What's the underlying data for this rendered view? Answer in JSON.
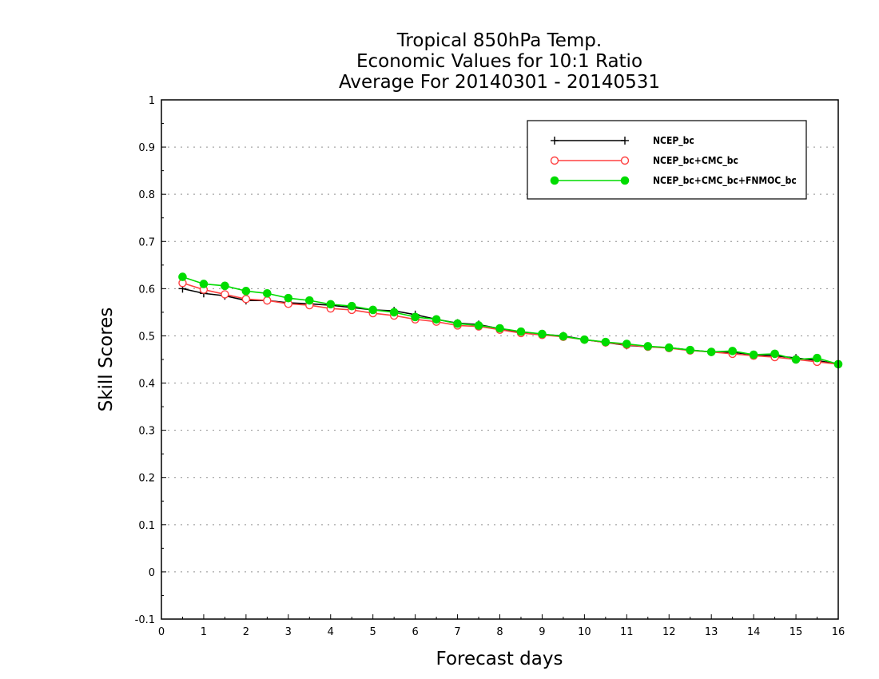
{
  "chart_data": {
    "type": "line",
    "title_lines": [
      "Tropical 850hPa Temp.",
      "Economic Values for 10:1 Ratio",
      "Average For 20140301 - 20140531"
    ],
    "xlabel": "Forecast days",
    "ylabel": "Skill Scores",
    "xlim": [
      0,
      16
    ],
    "ylim": [
      -0.1,
      1
    ],
    "x_ticks": [
      0,
      1,
      2,
      3,
      4,
      5,
      6,
      7,
      8,
      9,
      10,
      11,
      12,
      13,
      14,
      15,
      16
    ],
    "x_tick_labels": [
      "0",
      "1",
      "2",
      "3",
      "4",
      "5",
      "6",
      "7",
      "8",
      "9",
      "10",
      "11",
      "12",
      "13",
      "14",
      "15",
      "16"
    ],
    "y_ticks": [
      -0.1,
      0,
      0.1,
      0.2,
      0.3,
      0.4,
      0.5,
      0.6,
      0.7,
      0.8,
      0.9,
      1
    ],
    "y_tick_labels": [
      "-0.1",
      "0",
      "0.1",
      "0.2",
      "0.3",
      "0.4",
      "0.5",
      "0.6",
      "0.7",
      "0.8",
      "0.9",
      "1"
    ],
    "grid": "horizontal-dotted",
    "legend_position": "top-right",
    "x": [
      0.5,
      1,
      1.5,
      2,
      2.5,
      3,
      3.5,
      4,
      4.5,
      5,
      5.5,
      6,
      6.5,
      7,
      7.5,
      8,
      8.5,
      9,
      9.5,
      10,
      10.5,
      11,
      11.5,
      12,
      12.5,
      13,
      13.5,
      14,
      14.5,
      15,
      15.5,
      16
    ],
    "series": [
      {
        "name": "NCEP_bc",
        "color": "#000000",
        "marker": "plus",
        "values": [
          0.6,
          0.59,
          0.585,
          0.575,
          0.575,
          0.57,
          0.568,
          0.565,
          0.56,
          0.555,
          0.553,
          0.545,
          0.535,
          0.527,
          0.524,
          0.515,
          0.508,
          0.503,
          0.5,
          0.492,
          0.486,
          0.48,
          0.477,
          0.475,
          0.47,
          0.466,
          0.465,
          0.46,
          0.458,
          0.453,
          0.448,
          0.44
        ]
      },
      {
        "name": "NCEP_bc+CMC_bc",
        "color": "#ff4040",
        "marker": "open-circle",
        "values": [
          0.612,
          0.598,
          0.588,
          0.578,
          0.575,
          0.568,
          0.565,
          0.558,
          0.555,
          0.548,
          0.543,
          0.535,
          0.53,
          0.522,
          0.52,
          0.513,
          0.506,
          0.502,
          0.498,
          0.492,
          0.486,
          0.481,
          0.477,
          0.474,
          0.469,
          0.466,
          0.462,
          0.458,
          0.455,
          0.45,
          0.445,
          0.44
        ]
      },
      {
        "name": "NCEP_bc+CMC_bc+FNMOC_bc",
        "color": "#00dc00",
        "marker": "filled-circle",
        "values": [
          0.625,
          0.61,
          0.606,
          0.595,
          0.59,
          0.58,
          0.575,
          0.567,
          0.563,
          0.555,
          0.55,
          0.54,
          0.535,
          0.526,
          0.522,
          0.516,
          0.509,
          0.504,
          0.499,
          0.492,
          0.487,
          0.483,
          0.478,
          0.475,
          0.47,
          0.466,
          0.468,
          0.46,
          0.462,
          0.45,
          0.453,
          0.44
        ]
      }
    ]
  }
}
